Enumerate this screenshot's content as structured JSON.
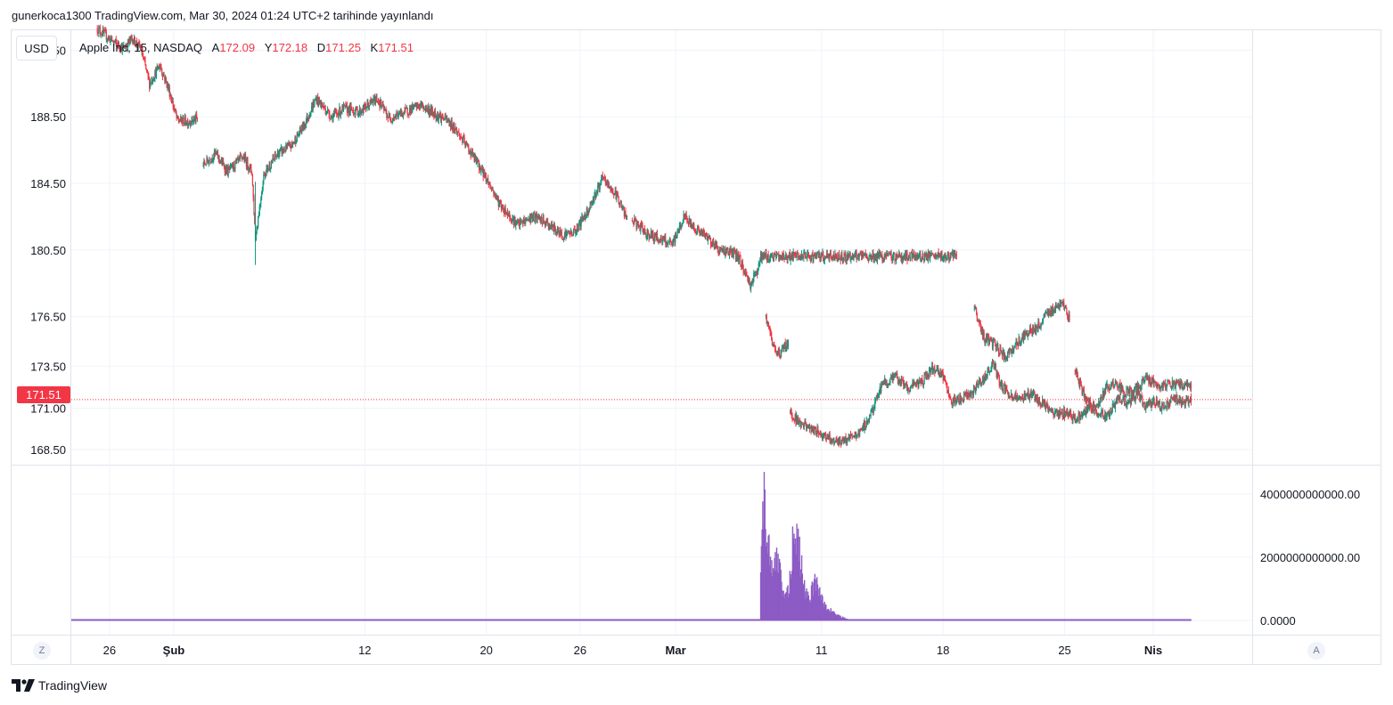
{
  "header": {
    "published_text": "gunerkoca1300 TradingView.com, Mar 30, 2024 01:24 UTC+2 tarihinde yayınlandı"
  },
  "toolbar": {
    "currency": "USD",
    "zoom_left": "Z",
    "auto_scale": "A"
  },
  "legend": {
    "symbol": "Apple Inc, 15, NASDAQ",
    "open_label": "A",
    "open_value": "172.09",
    "high_label": "Y",
    "high_value": "172.18",
    "low_label": "D",
    "low_value": "171.25",
    "close_label": "K",
    "close_value": "171.51"
  },
  "last_price_badge": "171.51",
  "brand": {
    "name": "TradingView"
  },
  "colors": {
    "up": "#089981",
    "down": "#f23645",
    "volume": "#8c5bc4",
    "grid": "#f0f3fa"
  },
  "chart_data": [
    {
      "type": "candlestick",
      "series": [
        {
          "name": "Apple Inc, 15, NASDAQ"
        }
      ],
      "x_range": [
        -1.5,
        66.5
      ],
      "x_unit": "trading days",
      "ylim": [
        167.6,
        193.7
      ],
      "yticks": [
        {
          "label": "192.50",
          "value": 192.5
        },
        {
          "label": "188.50",
          "value": 188.5
        },
        {
          "label": "184.50",
          "value": 184.5
        },
        {
          "label": "180.50",
          "value": 180.5
        },
        {
          "label": "176.50",
          "value": 176.5
        },
        {
          "label": "173.50",
          "value": 173.5
        },
        {
          "label": "171.00",
          "value": 171.0
        },
        {
          "label": "168.50",
          "value": 168.5
        }
      ],
      "xticks": [
        {
          "label": "26",
          "x": 0.7
        },
        {
          "label": "Şub",
          "x": 4.4
        },
        {
          "label": "12",
          "x": 15.4
        },
        {
          "label": "20",
          "x": 22.4
        },
        {
          "label": "26",
          "x": 27.8
        },
        {
          "label": "Mar",
          "x": 33.3
        },
        {
          "label": "11",
          "x": 41.7
        },
        {
          "label": "18",
          "x": 48.7
        },
        {
          "label": "25",
          "x": 55.7
        },
        {
          "label": "Nis",
          "x": 60.8
        }
      ],
      "last_price": 171.51,
      "segments": [
        {
          "x0": 0,
          "x1": 5.8,
          "path": [
            [
              0,
              193.8
            ],
            [
              0.8,
              193.1
            ],
            [
              1.5,
              192.6
            ],
            [
              2,
              193.2
            ],
            [
              2.5,
              192.6
            ],
            [
              3,
              190.5
            ],
            [
              3.6,
              191.6
            ],
            [
              4.1,
              190.2
            ],
            [
              4.6,
              188.3
            ],
            [
              5.2,
              188.2
            ],
            [
              5.8,
              188.4
            ]
          ]
        },
        {
          "x0": 6.1,
          "x1": 30.5,
          "path": [
            [
              6.1,
              185.6
            ],
            [
              6.8,
              186.3
            ],
            [
              7.5,
              185.2
            ],
            [
              8.4,
              186.1
            ],
            [
              8.9,
              185.2
            ],
            [
              9.1,
              181.2
            ],
            [
              9.6,
              185.1
            ],
            [
              10.4,
              186.3
            ],
            [
              11.2,
              186.8
            ],
            [
              11.9,
              188.0
            ],
            [
              12.6,
              189.6
            ],
            [
              13.5,
              188.5
            ],
            [
              14.2,
              189.0
            ],
            [
              15.1,
              188.8
            ],
            [
              16.1,
              189.6
            ],
            [
              16.8,
              188.4
            ],
            [
              17.5,
              188.7
            ],
            [
              18.6,
              189.2
            ],
            [
              19.4,
              188.7
            ],
            [
              20.1,
              188.3
            ],
            [
              20.6,
              187.8
            ],
            [
              21.6,
              186.2
            ],
            [
              22.3,
              185.0
            ],
            [
              23.2,
              183.2
            ],
            [
              24.2,
              182.0
            ],
            [
              25.1,
              182.5
            ],
            [
              25.7,
              182.2
            ],
            [
              26.8,
              181.4
            ],
            [
              27.5,
              181.6
            ],
            [
              28.3,
              183.0
            ],
            [
              29.1,
              184.8
            ],
            [
              30.0,
              183.6
            ],
            [
              30.5,
              182.3
            ]
          ]
        },
        {
          "x0": 30.8,
          "x1": 49.5,
          "path": [
            [
              30.8,
              182.3
            ],
            [
              31.6,
              181.5
            ],
            [
              32.3,
              181.2
            ],
            [
              33.1,
              180.8
            ],
            [
              33.8,
              182.5
            ],
            [
              34.3,
              181.9
            ],
            [
              35.2,
              181.2
            ],
            [
              35.8,
              180.5
            ],
            [
              36.4,
              180.4
            ],
            [
              36.9,
              180.1
            ],
            [
              37.6,
              178.4
            ],
            [
              38.0,
              179.3
            ],
            [
              38.2,
              180.1
            ]
          ]
        },
        {
          "x0": 38.5,
          "x1": 39.8,
          "path": [
            [
              38.5,
              176.5
            ],
            [
              38.9,
              174.7
            ],
            [
              39.3,
              174.3
            ],
            [
              39.8,
              175.0
            ]
          ]
        },
        {
          "x0": 39.9,
          "x1": 63.0,
          "path": [
            [
              39.9,
              170.7
            ],
            [
              40.5,
              170.1
            ],
            [
              41.2,
              169.7
            ],
            [
              42.0,
              169.3
            ],
            [
              42.8,
              168.9
            ],
            [
              43.4,
              169.3
            ],
            [
              43.9,
              169.5
            ],
            [
              44.5,
              170.5
            ],
            [
              45.2,
              172.5
            ],
            [
              46.0,
              172.8
            ],
            [
              46.7,
              172.2
            ],
            [
              47.5,
              172.6
            ],
            [
              48.1,
              173.4
            ],
            [
              48.7,
              172.9
            ],
            [
              49.2,
              171.3
            ],
            [
              49.8,
              171.6
            ],
            [
              50.4,
              172.0
            ],
            [
              51.0,
              172.7
            ],
            [
              51.6,
              173.7
            ],
            [
              52.0,
              172.4
            ],
            [
              52.6,
              171.7
            ],
            [
              53.3,
              171.6
            ],
            [
              53.8,
              171.9
            ],
            [
              54.4,
              171.3
            ],
            [
              55.1,
              170.6
            ],
            [
              55.8,
              170.7
            ],
            [
              56.4,
              170.3
            ],
            [
              57.0,
              171.0
            ],
            [
              57.6,
              170.7
            ],
            [
              58.2,
              170.5
            ],
            [
              58.8,
              171.6
            ],
            [
              59.4,
              171.2
            ],
            [
              59.9,
              171.9
            ],
            [
              60.3,
              171.1
            ],
            [
              60.8,
              171.4
            ],
            [
              61.4,
              171.0
            ],
            [
              62.0,
              171.6
            ],
            [
              62.6,
              171.3
            ],
            [
              63.0,
              171.5
            ]
          ]
        },
        {
          "x0": 50.5,
          "x1": 56.0,
          "path": [
            [
              50.5,
              177.0
            ],
            [
              51.1,
              175.1
            ],
            [
              51.6,
              174.9
            ],
            [
              52.3,
              174.0
            ],
            [
              52.9,
              174.8
            ],
            [
              53.4,
              175.5
            ],
            [
              54.0,
              175.7
            ],
            [
              54.6,
              176.5
            ],
            [
              55.1,
              177.0
            ],
            [
              55.6,
              177.5
            ],
            [
              56.0,
              176.2
            ]
          ]
        },
        {
          "x0": 56.3,
          "x1": 63.0,
          "path": [
            [
              56.3,
              173.3
            ],
            [
              56.9,
              171.5
            ],
            [
              57.5,
              171.0
            ],
            [
              58.1,
              172.2
            ],
            [
              58.6,
              172.6
            ],
            [
              59.2,
              171.9
            ],
            [
              59.8,
              172.1
            ],
            [
              60.4,
              172.8
            ],
            [
              60.9,
              172.4
            ]
          ]
        }
      ]
    },
    {
      "type": "bar",
      "series": [
        {
          "name": ""
        }
      ],
      "ylim": [
        0,
        4900000000000
      ],
      "yticks": [
        {
          "label": "4000000000000.00",
          "value": 4000000000000
        },
        {
          "label": "2000000000000.00",
          "value": 2000000000000
        },
        {
          "label": "0.0000",
          "value": 0
        }
      ],
      "bursts": [
        {
          "x": 38.2,
          "value": 2500000000000
        },
        {
          "x": 38.4,
          "value": 4700000000000
        },
        {
          "x": 38.6,
          "value": 3000000000000
        },
        {
          "x": 38.9,
          "value": 1700000000000
        },
        {
          "x": 39.2,
          "value": 2600000000000
        },
        {
          "x": 39.5,
          "value": 1000000000000
        },
        {
          "x": 39.8,
          "value": 1200000000000
        },
        {
          "x": 40.1,
          "value": 3500000000000
        },
        {
          "x": 40.4,
          "value": 2800000000000
        },
        {
          "x": 40.7,
          "value": 1300000000000
        },
        {
          "x": 41.0,
          "value": 800000000000
        },
        {
          "x": 41.3,
          "value": 1500000000000
        },
        {
          "x": 41.6,
          "value": 1200000000000
        },
        {
          "x": 41.9,
          "value": 600000000000
        },
        {
          "x": 42.2,
          "value": 400000000000
        },
        {
          "x": 42.5,
          "value": 250000000000
        },
        {
          "x": 42.8,
          "value": 150000000000
        },
        {
          "x": 43.2,
          "value": 60000000000
        }
      ]
    }
  ]
}
